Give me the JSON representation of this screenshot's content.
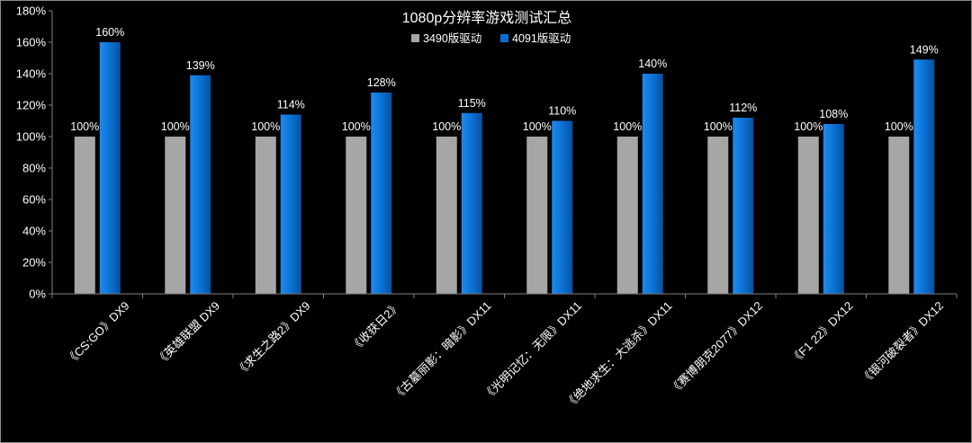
{
  "chart_data": {
    "type": "bar",
    "title": "1080p分辨率游戏测试汇总",
    "categories": [
      "《CS:GO》DX9",
      "《英雄联盟 DX9",
      "《求生之路2》DX9",
      "《收获日2》",
      "《古墓丽影：暗影》DX11",
      "《光明记忆：无限》DX11",
      "《绝地求生：大逃杀》DX11",
      "《赛博朋克2077》DX12",
      "《F1 22》DX12",
      "《银河破裂者》DX12"
    ],
    "series": [
      {
        "name": "3490版驱动",
        "values": [
          100,
          100,
          100,
          100,
          100,
          100,
          100,
          100,
          100,
          100
        ],
        "color": "#a6a6a6"
      },
      {
        "name": "4091版驱动",
        "values": [
          160,
          139,
          114,
          128,
          115,
          110,
          140,
          112,
          108,
          149
        ],
        "color": "#0a6fd1"
      }
    ],
    "value_suffix": "%",
    "ylim": [
      0,
      180
    ],
    "ytick_step": 20,
    "yticks": [
      "0%",
      "20%",
      "40%",
      "60%",
      "80%",
      "100%",
      "120%",
      "140%",
      "160%",
      "180%"
    ],
    "grid": false,
    "legend": "top-center",
    "colors": {
      "background": "#000000",
      "text": "#ffffff",
      "axis": "#7f7f7f"
    }
  }
}
